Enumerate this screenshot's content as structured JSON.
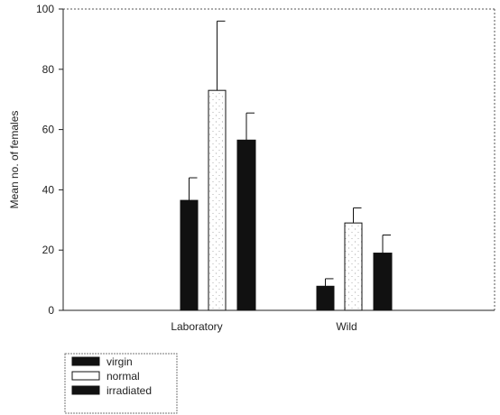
{
  "chart_data": {
    "type": "bar",
    "title": "",
    "xlabel": "",
    "ylabel": "Mean no. of females",
    "ylim": [
      0,
      100
    ],
    "yticks": [
      0,
      20,
      40,
      60,
      80,
      100
    ],
    "categories": [
      "Laboratory",
      "Wild"
    ],
    "series": [
      {
        "name": "virgin",
        "values": [
          36.5,
          8
        ],
        "errors": [
          7.5,
          2.5
        ],
        "fill": "#111111"
      },
      {
        "name": "normal",
        "values": [
          73,
          29
        ],
        "errors": [
          23,
          5
        ],
        "fill": "#ffffff"
      },
      {
        "name": "irradiated",
        "values": [
          56.5,
          19
        ],
        "errors": [
          9,
          6
        ],
        "fill": "#111111"
      }
    ],
    "grid": false,
    "legend_position": "bottom-left"
  }
}
